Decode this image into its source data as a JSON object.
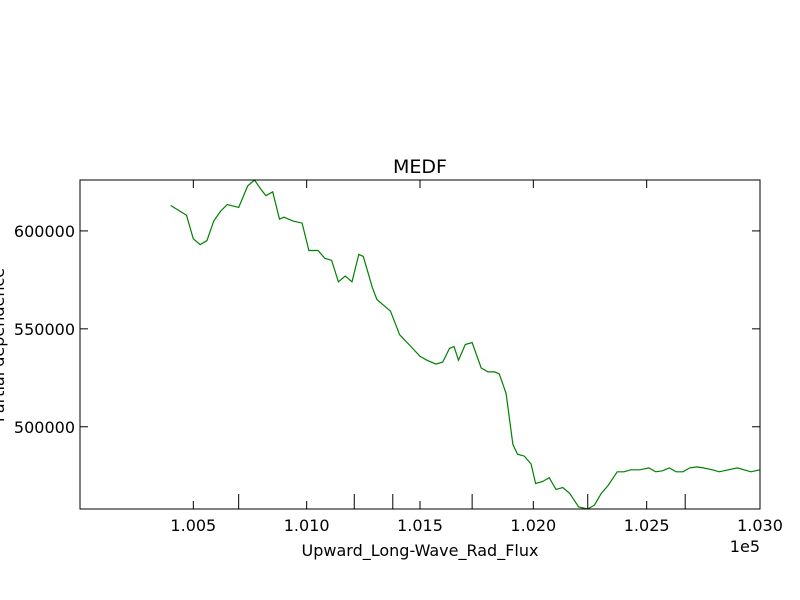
{
  "chart_data": {
    "type": "line",
    "title": "MEDF",
    "xlabel": "Upward_Long-Wave_Rad_Flux",
    "ylabel": "Partial dependence",
    "x_offset_label": "1e5",
    "xlim": [
      100000,
      103000
    ],
    "ylim": [
      458000,
      626000
    ],
    "x_ticks": [
      100500,
      101000,
      101500,
      102000,
      102500,
      103000
    ],
    "x_tick_labels": [
      "1.005",
      "1.010",
      "1.015",
      "1.020",
      "1.025",
      "1.030"
    ],
    "y_ticks": [
      500000,
      550000,
      600000
    ],
    "y_tick_labels": [
      "500000",
      "550000",
      "600000"
    ],
    "rug_x": [
      100700,
      101210,
      101380,
      101730,
      102240,
      102670
    ],
    "grid": false,
    "line_color": "#008000",
    "series": [
      {
        "x": [
          100400,
          100470,
          100500,
          100530,
          100560,
          100590,
          100620,
          100650,
          100700,
          100740,
          100770,
          100800,
          100820,
          100850,
          100880,
          100900,
          100940,
          100980,
          101010,
          101050,
          101080,
          101110,
          101140,
          101170,
          101200,
          101230,
          101250,
          101290,
          101310,
          101330,
          101370,
          101410,
          101460,
          101500,
          101530,
          101570,
          101600,
          101630,
          101650,
          101670,
          101700,
          101730,
          101770,
          101800,
          101830,
          101850,
          101880,
          101910,
          101930,
          101960,
          101990,
          102010,
          102040,
          102070,
          102100,
          102130,
          102160,
          102200,
          102240,
          102270,
          102300,
          102330,
          102370,
          102400,
          102430,
          102470,
          102510,
          102540,
          102570,
          102600,
          102630,
          102660,
          102690,
          102720,
          102750,
          102790,
          102820,
          102860,
          102900,
          102930,
          102960,
          103000
        ],
        "y": [
          613000,
          608000,
          596000,
          593000,
          595000,
          605000,
          610000,
          613500,
          612000,
          623000,
          626000,
          621000,
          618000,
          620000,
          606000,
          607000,
          605000,
          604000,
          590000,
          590000,
          586000,
          585000,
          574000,
          577000,
          574000,
          588000,
          587000,
          571000,
          565000,
          563000,
          559000,
          547000,
          541000,
          536000,
          534000,
          532000,
          533000,
          540000,
          541000,
          534000,
          542000,
          543000,
          530000,
          528000,
          528000,
          527000,
          517000,
          491000,
          486000,
          485000,
          481000,
          471000,
          472000,
          474000,
          468000,
          469000,
          466000,
          459000,
          458000,
          460000,
          466000,
          470000,
          477000,
          477000,
          478000,
          478000,
          479000,
          477000,
          477500,
          479000,
          477000,
          477000,
          479000,
          479500,
          479000,
          478000,
          477000,
          478000,
          479000,
          478000,
          477000,
          478000
        ]
      }
    ]
  }
}
